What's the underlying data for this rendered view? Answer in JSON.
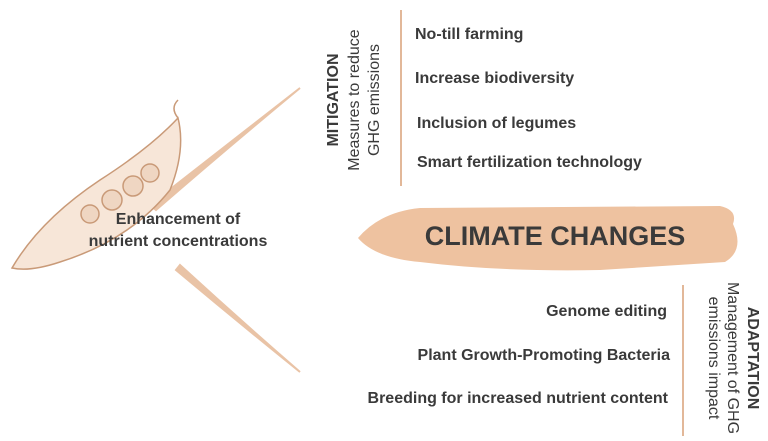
{
  "center": {
    "lines": [
      "Enhancement of",
      "nutrient concentrations"
    ]
  },
  "main": {
    "title": "CLIMATE CHANGES"
  },
  "mitigation": {
    "heading": "MITIGATION",
    "subtitle": [
      "Measures to reduce",
      "GHG emissions"
    ],
    "items": [
      "No-till farming",
      "Increase biodiversity",
      "Inclusion of legumes",
      "Smart fertilization technology"
    ]
  },
  "adaptation": {
    "heading": "ADAPTATION",
    "subtitle": [
      "Management of GHG",
      "emissions impact"
    ],
    "items": [
      "Genome editing",
      "Plant Growth-Promoting Bacteria",
      "Breeding for increased nutrient content"
    ]
  }
}
